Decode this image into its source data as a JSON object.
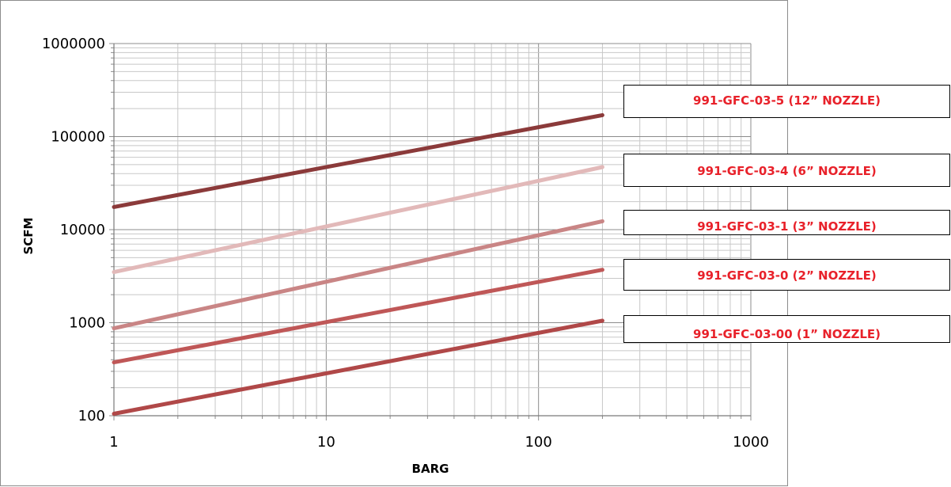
{
  "chart_data": {
    "type": "line",
    "title": "",
    "xlabel": "BARG",
    "ylabel": "SCFM",
    "x_scale": "log",
    "y_scale": "log",
    "xlim": [
      1,
      1000
    ],
    "ylim": [
      100,
      1000000
    ],
    "x_ticks": [
      "1",
      "10",
      "100",
      "1000"
    ],
    "y_ticks": [
      "100",
      "1000",
      "10000",
      "100000",
      "1000000"
    ],
    "grid": true,
    "series": [
      {
        "name": "991-GFC-03-5  (12” NOZZLE)",
        "color": "#8b3a3a",
        "x": [
          1,
          200
        ],
        "y": [
          17500,
          170000
        ]
      },
      {
        "name": "991-GFC-03-4 (6” NOZZLE)",
        "color": "#e2b9b9",
        "x": [
          1,
          200
        ],
        "y": [
          3500,
          47000
        ]
      },
      {
        "name": "991-GFC-03-1 (3” NOZZLE)",
        "color": "#c98585",
        "x": [
          1,
          200
        ],
        "y": [
          870,
          12300
        ]
      },
      {
        "name": "991-GFC-03-0  (2” NOZZLE)",
        "color": "#bf5757",
        "x": [
          1,
          200
        ],
        "y": [
          375,
          3700
        ]
      },
      {
        "name": "991-GFC-03-00  (1” NOZZLE)",
        "color": "#b04848",
        "x": [
          1,
          200
        ],
        "y": [
          105,
          1050
        ]
      }
    ]
  }
}
